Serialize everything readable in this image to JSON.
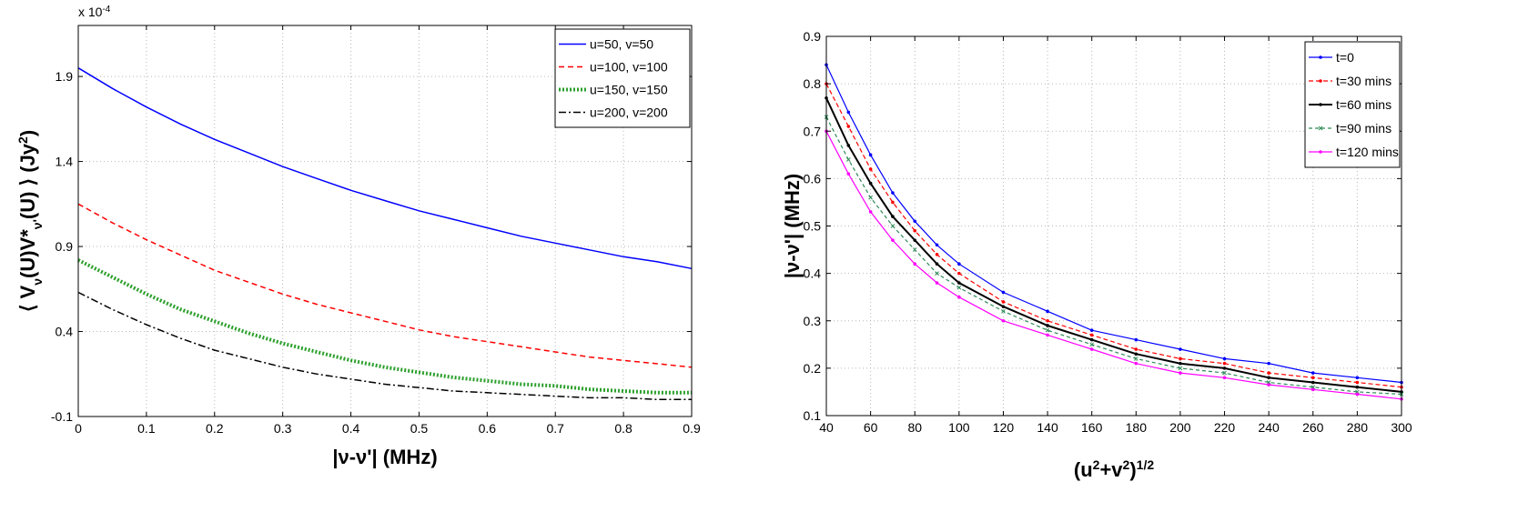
{
  "chart_data": [
    {
      "type": "line",
      "exponent_label": "x 10",
      "exponent_power": "-4",
      "xlabel": "|ν-ν'| (MHz)",
      "ylabel_parts": [
        "⟨ V",
        "ν",
        "(U)V*",
        "ν'",
        "(U) ⟩ (Jy",
        "2",
        ")"
      ],
      "xlim": [
        0,
        0.9
      ],
      "ylim": [
        -0.1,
        2.2
      ],
      "xticks": [
        "0",
        "0.1",
        "0.2",
        "0.3",
        "0.4",
        "0.5",
        "0.6",
        "0.7",
        "0.8",
        "0.9"
      ],
      "xtick_values": [
        0,
        0.1,
        0.2,
        0.3,
        0.4,
        0.5,
        0.6,
        0.7,
        0.8,
        0.9
      ],
      "yticks": [
        "-0.1",
        "0.4",
        "0.9",
        "1.4",
        "1.9"
      ],
      "ytick_values": [
        -0.1,
        0.4,
        0.9,
        1.4,
        1.9
      ],
      "legend_position": "top-right",
      "x": [
        0,
        0.05,
        0.1,
        0.15,
        0.2,
        0.25,
        0.3,
        0.35,
        0.4,
        0.45,
        0.5,
        0.55,
        0.6,
        0.65,
        0.7,
        0.75,
        0.8,
        0.85,
        0.9
      ],
      "series": [
        {
          "name": "u=50, v=50",
          "color": "#0000ff",
          "dash": "",
          "width": 1.5,
          "values": [
            1.95,
            1.83,
            1.72,
            1.62,
            1.53,
            1.45,
            1.37,
            1.3,
            1.23,
            1.17,
            1.11,
            1.06,
            1.01,
            0.96,
            0.92,
            0.88,
            0.84,
            0.81,
            0.77
          ]
        },
        {
          "name": "u=100, v=100",
          "color": "#ff0000",
          "dash": "6 4",
          "width": 1.5,
          "values": [
            1.15,
            1.04,
            0.94,
            0.85,
            0.76,
            0.69,
            0.62,
            0.56,
            0.51,
            0.46,
            0.41,
            0.37,
            0.34,
            0.31,
            0.28,
            0.25,
            0.23,
            0.21,
            0.19
          ]
        },
        {
          "name": "u=150, v=150",
          "color": "#2ca02c",
          "dash": "2 2",
          "width": 4,
          "values": [
            0.82,
            0.72,
            0.62,
            0.53,
            0.46,
            0.39,
            0.33,
            0.28,
            0.23,
            0.19,
            0.16,
            0.13,
            0.11,
            0.09,
            0.08,
            0.06,
            0.05,
            0.04,
            0.04
          ]
        },
        {
          "name": "u=200, v=200",
          "color": "#000000",
          "dash": "8 3 2 3",
          "width": 1.5,
          "values": [
            0.63,
            0.53,
            0.44,
            0.36,
            0.29,
            0.24,
            0.19,
            0.15,
            0.12,
            0.09,
            0.07,
            0.05,
            0.04,
            0.03,
            0.02,
            0.01,
            0.01,
            0.0,
            0.0
          ]
        }
      ]
    },
    {
      "type": "line",
      "xlabel_parts": [
        "(u",
        "2",
        "+v",
        "2",
        ")",
        "1/2"
      ],
      "ylabel": "|ν-ν'| (MHz)",
      "xlim": [
        40,
        300
      ],
      "ylim": [
        0.1,
        0.9
      ],
      "xticks": [
        "40",
        "60",
        "80",
        "100",
        "120",
        "140",
        "160",
        "180",
        "200",
        "220",
        "240",
        "260",
        "280",
        "300"
      ],
      "xtick_values": [
        40,
        60,
        80,
        100,
        120,
        140,
        160,
        180,
        200,
        220,
        240,
        260,
        280,
        300
      ],
      "yticks": [
        "0.1",
        "0.2",
        "0.3",
        "0.4",
        "0.5",
        "0.6",
        "0.7",
        "0.8",
        "0.9"
      ],
      "ytick_values": [
        0.1,
        0.2,
        0.3,
        0.4,
        0.5,
        0.6,
        0.7,
        0.8,
        0.9
      ],
      "legend_position": "top-right",
      "x": [
        40,
        50,
        60,
        70,
        80,
        90,
        100,
        120,
        140,
        160,
        180,
        200,
        220,
        240,
        260,
        280,
        300
      ],
      "series": [
        {
          "name": "t=0",
          "color": "#0000ff",
          "dash": "",
          "width": 1.2,
          "marker": "dot",
          "values": [
            0.84,
            0.74,
            0.65,
            0.57,
            0.51,
            0.46,
            0.42,
            0.36,
            0.32,
            0.28,
            0.26,
            0.24,
            0.22,
            0.21,
            0.19,
            0.18,
            0.17
          ]
        },
        {
          "name": "t=30 mins",
          "color": "#ff0000",
          "dash": "5 3",
          "width": 1.2,
          "marker": "dot",
          "values": [
            0.8,
            0.71,
            0.62,
            0.55,
            0.49,
            0.44,
            0.4,
            0.34,
            0.3,
            0.27,
            0.24,
            0.22,
            0.21,
            0.19,
            0.18,
            0.17,
            0.16
          ]
        },
        {
          "name": "t=60 mins",
          "color": "#000000",
          "dash": "",
          "width": 2,
          "marker": "dot",
          "values": [
            0.77,
            0.67,
            0.59,
            0.52,
            0.47,
            0.42,
            0.38,
            0.33,
            0.29,
            0.26,
            0.23,
            0.21,
            0.2,
            0.18,
            0.17,
            0.16,
            0.15
          ]
        },
        {
          "name": "t=90 mins",
          "color": "#2e8b57",
          "dash": "4 3",
          "width": 1.2,
          "marker": "x",
          "values": [
            0.73,
            0.64,
            0.56,
            0.5,
            0.45,
            0.4,
            0.37,
            0.32,
            0.28,
            0.25,
            0.22,
            0.2,
            0.19,
            0.17,
            0.16,
            0.15,
            0.145
          ]
        },
        {
          "name": "t=120 mins",
          "color": "#ff00ff",
          "dash": "",
          "width": 1.2,
          "marker": "dot",
          "values": [
            0.7,
            0.61,
            0.53,
            0.47,
            0.42,
            0.38,
            0.35,
            0.3,
            0.27,
            0.24,
            0.21,
            0.19,
            0.18,
            0.165,
            0.155,
            0.145,
            0.135
          ]
        }
      ]
    }
  ]
}
